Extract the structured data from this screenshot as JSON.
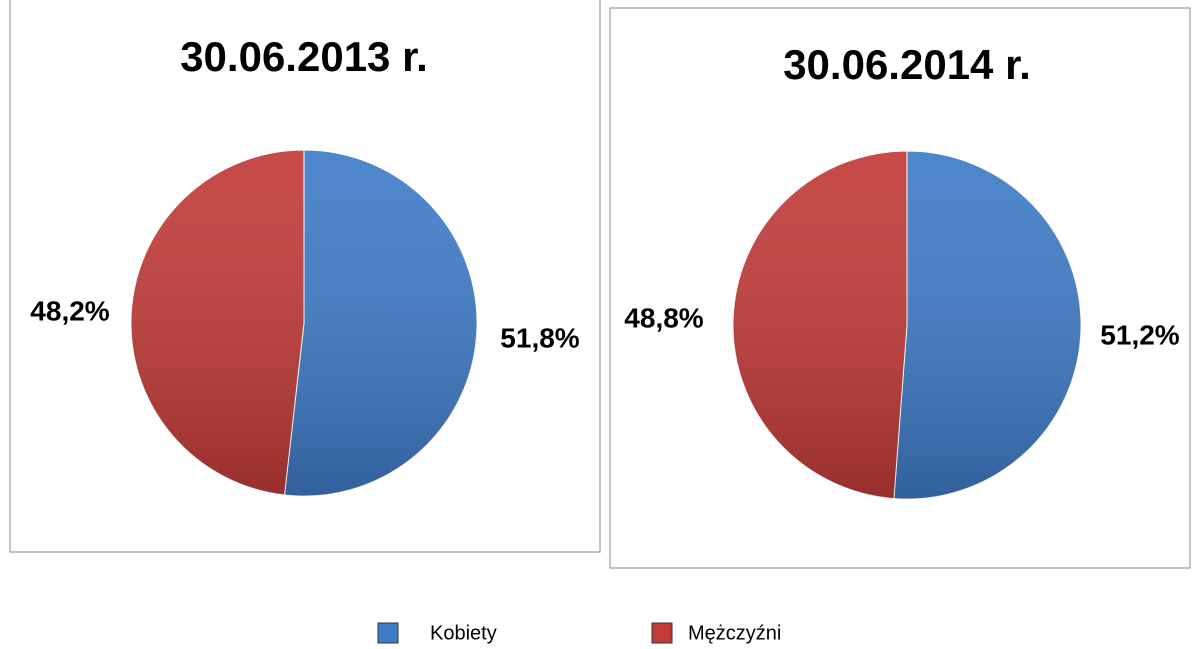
{
  "chart_data": [
    {
      "type": "pie",
      "title": "30.06.2013 r.",
      "categories": [
        "Kobiety",
        "Mężczyźni"
      ],
      "values": [
        51.8,
        48.2
      ],
      "value_labels": [
        "51,8%",
        "48,2%"
      ],
      "colors": [
        "#3f7cc8",
        "#c23b38"
      ]
    },
    {
      "type": "pie",
      "title": "30.06.2014 r.",
      "categories": [
        "Kobiety",
        "Mężczyźni"
      ],
      "values": [
        51.2,
        48.8
      ],
      "value_labels": [
        "51,2%",
        "48,8%"
      ],
      "colors": [
        "#3f7cc8",
        "#c23b38"
      ]
    }
  ]
}
